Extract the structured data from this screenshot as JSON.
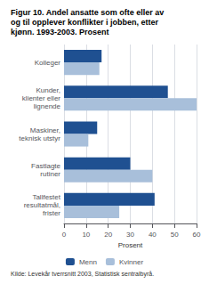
{
  "chart_data": {
    "type": "bar",
    "orientation": "horizontal",
    "title": "Figur 10. Andel ansatte som ofte eller av\nog til opplever konflikter i jobben, etter\nkjønn. 1993-2003. Prosent",
    "source": "Kilde: Levekår tverrsnitt 2003, Statistisk sentralbyrå.",
    "categories": [
      "Kolleger",
      "Kunder,\nklienter eller\nlignende",
      "Maskiner,\nteknisk utstyr",
      "Fastlagte\nrutiner",
      "Tallfestet\nresultatmål,\nfrister"
    ],
    "series": [
      {
        "name": "Menn",
        "color": "#1F5091",
        "values": [
          17,
          47,
          15,
          30,
          41
        ]
      },
      {
        "name": "Kvinner",
        "color": "#A8BFDA",
        "values": [
          16,
          60,
          11,
          40,
          25
        ]
      }
    ],
    "xlabel": "Prosent",
    "xlim": [
      0,
      60
    ],
    "xticks": [
      0,
      10,
      20,
      30,
      40,
      50,
      60
    ],
    "grid": true,
    "legend": "bottom"
  }
}
